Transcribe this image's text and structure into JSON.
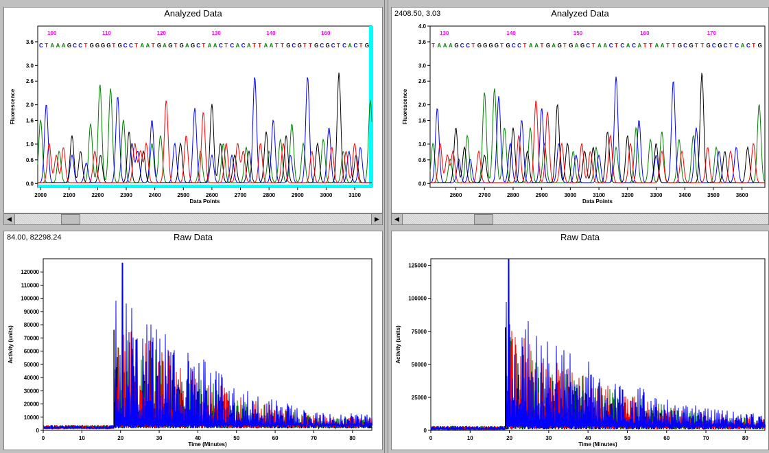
{
  "panels": {
    "top_left": {
      "title": "Analyzed Data",
      "coord": ""
    },
    "top_right": {
      "title": "Analyzed Data",
      "coord": "2408.50, 3.03"
    },
    "bottom_left": {
      "title": "Raw Data",
      "coord": "84.00, 82298.24"
    },
    "bottom_right": {
      "title": "Raw Data",
      "coord": ""
    }
  },
  "scrollbar": {
    "left_arrow": "◀",
    "right_arrow": "▶"
  },
  "colors": {
    "A": "#008000",
    "C": "#0000ff",
    "G": "#000000",
    "T": "#ff0000",
    "base_index": "#ff00ff",
    "cyan_edge": "#00ffff"
  },
  "chart_data": [
    {
      "type": "line",
      "title": "Analyzed Data",
      "xlabel": "Data Points",
      "ylabel": "Fluorescence",
      "xlim": [
        1990,
        3160
      ],
      "ylim": [
        -0.1,
        4.0
      ],
      "x_ticks": [
        "2000",
        "2100",
        "2200",
        "2300",
        "2400",
        "2500",
        "2600",
        "2700",
        "2800",
        "2900",
        "3000",
        "3100"
      ],
      "y_ticks": [
        "0.0",
        "0.6",
        "1.0",
        "1.6",
        "2.0",
        "2.6",
        "3.0",
        "3.6"
      ],
      "base_index_labels": [
        "100",
        "110",
        "120",
        "130",
        "140",
        "160"
      ],
      "sequence": "CTAAAGCCTGGGGTGCCTAATGAGTGAGCTAACTCACATTAATTGCGTTGCGCTCACTG",
      "series": [
        {
          "name": "A",
          "peaks": [
            [
              2000,
              1.6
            ],
            [
              2065,
              0.8
            ],
            [
              2175,
              1.5
            ],
            [
              2208,
              2.5
            ],
            [
              2245,
              2.4
            ],
            [
              2290,
              1.6
            ],
            [
              2390,
              1.0
            ],
            [
              2420,
              1.2
            ],
            [
              2560,
              0.8
            ],
            [
              2640,
              1.0
            ],
            [
              2720,
              0.9
            ],
            [
              2800,
              0.8
            ],
            [
              2840,
              1.1
            ],
            [
              2880,
              1.5
            ],
            [
              2920,
              1.0
            ],
            [
              2990,
              1.1
            ],
            [
              3060,
              0.8
            ],
            [
              3155,
              2.1
            ]
          ]
        },
        {
          "name": "C",
          "peaks": [
            [
              2020,
              2.0
            ],
            [
              2110,
              0.7
            ],
            [
              2160,
              0.5
            ],
            [
              2270,
              2.2
            ],
            [
              2320,
              1.0
            ],
            [
              2340,
              0.8
            ],
            [
              2390,
              1.6
            ],
            [
              2470,
              1.0
            ],
            [
              2540,
              1.9
            ],
            [
              2600,
              0.7
            ],
            [
              2670,
              0.7
            ],
            [
              2750,
              2.7
            ],
            [
              2815,
              1.6
            ],
            [
              2875,
              0.7
            ],
            [
              2935,
              2.7
            ],
            [
              3010,
              1.4
            ],
            [
              3080,
              0.8
            ],
            [
              3120,
              0.9
            ]
          ]
        },
        {
          "name": "G",
          "peaks": [
            [
              2110,
              1.2
            ],
            [
              2140,
              0.8
            ],
            [
              2210,
              0.7
            ],
            [
              2310,
              1.3
            ],
            [
              2360,
              0.8
            ],
            [
              2490,
              1.0
            ],
            [
              2600,
              2.0
            ],
            [
              2630,
              1.0
            ],
            [
              2680,
              0.7
            ],
            [
              2730,
              0.8
            ],
            [
              2790,
              1.3
            ],
            [
              2860,
              1.2
            ],
            [
              2970,
              1.0
            ],
            [
              3045,
              2.8
            ],
            [
              3105,
              0.7
            ]
          ]
        },
        {
          "name": "T",
          "peaks": [
            [
              2030,
              1.0
            ],
            [
              2055,
              0.7
            ],
            [
              2080,
              0.9
            ],
            [
              2190,
              0.8
            ],
            [
              2330,
              1.0
            ],
            [
              2350,
              0.8
            ],
            [
              2370,
              1.0
            ],
            [
              2440,
              2.1
            ],
            [
              2510,
              1.2
            ],
            [
              2570,
              1.8
            ],
            [
              2650,
              1.0
            ],
            [
              2690,
              1.0
            ],
            [
              2710,
              0.8
            ],
            [
              2770,
              1.0
            ],
            [
              2850,
              1.0
            ],
            [
              2950,
              0.8
            ],
            [
              3020,
              0.9
            ],
            [
              3070,
              0.8
            ],
            [
              3100,
              1.0
            ]
          ]
        }
      ]
    },
    {
      "type": "line",
      "title": "Analyzed Data",
      "xlabel": "Data Points",
      "ylabel": "Fluorescence",
      "xlim": [
        2510,
        3680
      ],
      "ylim": [
        -0.1,
        4.0
      ],
      "x_ticks": [
        "2600",
        "2700",
        "2800",
        "2900",
        "3000",
        "3100",
        "3200",
        "3300",
        "3400",
        "3500",
        "3600"
      ],
      "y_ticks": [
        "0.0",
        "0.6",
        "1.0",
        "1.6",
        "2.0",
        "2.6",
        "3.0",
        "3.6",
        "4.0"
      ],
      "base_index_labels": [
        "130",
        "140",
        "150",
        "160",
        "170"
      ],
      "sequence": "TAAAGCCTGGGGTGCCTAATGAGTGAGCTAACTCACATTAATTGCGTTGCGCTCACTG",
      "series": [
        {
          "name": "A",
          "peaks": [
            [
              2520,
              1.0
            ],
            [
              2580,
              0.6
            ],
            [
              2640,
              1.2
            ],
            [
              2700,
              2.3
            ],
            [
              2735,
              2.4
            ],
            [
              2770,
              1.4
            ],
            [
              2860,
              1.4
            ],
            [
              2910,
              1.0
            ],
            [
              3010,
              0.8
            ],
            [
              3090,
              0.9
            ],
            [
              3160,
              0.9
            ],
            [
              3230,
              1.4
            ],
            [
              3280,
              1.1
            ],
            [
              3320,
              1.3
            ],
            [
              3380,
              1.1
            ],
            [
              3430,
              1.2
            ],
            [
              3510,
              0.9
            ],
            [
              3660,
              2.0
            ]
          ]
        },
        {
          "name": "C",
          "peaks": [
            [
              2535,
              1.9
            ],
            [
              2610,
              0.6
            ],
            [
              2650,
              0.6
            ],
            [
              2750,
              2.2
            ],
            [
              2790,
              1.0
            ],
            [
              2830,
              1.6
            ],
            [
              2900,
              1.9
            ],
            [
              2960,
              1.0
            ],
            [
              3020,
              0.7
            ],
            [
              3100,
              0.7
            ],
            [
              3160,
              2.7
            ],
            [
              3240,
              1.6
            ],
            [
              3300,
              0.7
            ],
            [
              3360,
              2.6
            ],
            [
              3440,
              1.4
            ],
            [
              3520,
              0.8
            ],
            [
              3580,
              0.9
            ]
          ]
        },
        {
          "name": "G",
          "peaks": [
            [
              2600,
              1.4
            ],
            [
              2630,
              0.9
            ],
            [
              2700,
              0.7
            ],
            [
              2800,
              1.4
            ],
            [
              2850,
              0.8
            ],
            [
              2955,
              2.0
            ],
            [
              2990,
              1.0
            ],
            [
              3050,
              0.8
            ],
            [
              3080,
              0.9
            ],
            [
              3130,
              1.3
            ],
            [
              3200,
              1.2
            ],
            [
              3300,
              1.0
            ],
            [
              3460,
              2.8
            ],
            [
              3540,
              0.8
            ],
            [
              3620,
              0.9
            ]
          ]
        },
        {
          "name": "T",
          "peaks": [
            [
              2545,
              1.0
            ],
            [
              2570,
              0.7
            ],
            [
              2590,
              0.8
            ],
            [
              2680,
              0.8
            ],
            [
              2820,
              1.2
            ],
            [
              2880,
              2.1
            ],
            [
              2920,
              1.8
            ],
            [
              2970,
              1.0
            ],
            [
              3040,
              1.0
            ],
            [
              3070,
              0.8
            ],
            [
              3140,
              1.2
            ],
            [
              3210,
              1.0
            ],
            [
              3320,
              0.8
            ],
            [
              3390,
              0.8
            ],
            [
              3480,
              0.9
            ],
            [
              3560,
              0.8
            ],
            [
              3640,
              1.0
            ]
          ]
        }
      ]
    },
    {
      "type": "line",
      "title": "Raw Data",
      "xlabel": "Time (Minutes)",
      "ylabel": "Activity (units)",
      "xlim": [
        0,
        85
      ],
      "ylim": [
        0,
        130000
      ],
      "x_ticks": [
        "0",
        "10",
        "20",
        "30",
        "40",
        "50",
        "60",
        "70",
        "80"
      ],
      "y_ticks": [
        "0",
        "10000",
        "20000",
        "30000",
        "40000",
        "50000",
        "60000",
        "70000",
        "80000",
        "90000",
        "100000",
        "110000",
        "120000"
      ],
      "baseline": 1500,
      "onset_min": 18.3,
      "spike_peak": {
        "time": 20.5,
        "value": 127000
      },
      "decay_profile": [
        [
          18.5,
          100000
        ],
        [
          25,
          90000
        ],
        [
          30,
          80000
        ],
        [
          40,
          55000
        ],
        [
          50,
          30000
        ],
        [
          60,
          20000
        ],
        [
          70,
          12000
        ],
        [
          85,
          9000
        ]
      ]
    },
    {
      "type": "line",
      "title": "Raw Data",
      "xlabel": "Time (Minutes)",
      "ylabel": "Activity (units)",
      "xlim": [
        0,
        85
      ],
      "ylim": [
        0,
        130000
      ],
      "x_ticks": [
        "0",
        "10",
        "20",
        "30",
        "40",
        "50",
        "60",
        "70",
        "80"
      ],
      "y_ticks": [
        "0",
        "25000",
        "50000",
        "75000",
        "100000",
        "125000"
      ],
      "baseline": 800,
      "onset_min": 19,
      "spike_peak": {
        "time": 19.8,
        "value": 130000
      },
      "decay_profile": [
        [
          19.2,
          100000
        ],
        [
          25,
          80000
        ],
        [
          30,
          65000
        ],
        [
          40,
          50000
        ],
        [
          50,
          35000
        ],
        [
          60,
          22000
        ],
        [
          70,
          14000
        ],
        [
          85,
          9000
        ]
      ]
    }
  ]
}
